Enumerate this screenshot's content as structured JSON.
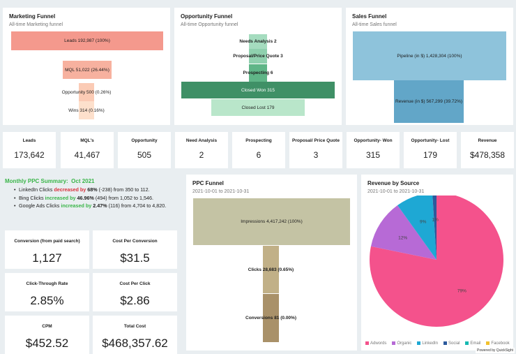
{
  "marketing_funnel": {
    "title": "Marketing Funnel",
    "subtitle": "All-time Marketing funnel",
    "stages": [
      {
        "label": "Leads 192,987 (100%)",
        "color": "#f4998d"
      },
      {
        "label": "MQL 51,022 (26.44%)",
        "color": "#f7b19f"
      },
      {
        "label": "Opportunity 500 (0.26%)",
        "color": "#fbcbb5"
      },
      {
        "label": "Wins 314 (0.16%)",
        "color": "#fde0cc"
      }
    ]
  },
  "opportunity_funnel": {
    "title": "Opportunity Funnel",
    "subtitle": "All-time Opportunity funnel",
    "stages": [
      {
        "label": "Needs Analysis 2",
        "color": "#a5dcbf"
      },
      {
        "label": "Proposal/Price Quote 3",
        "color": "#8fd0ae"
      },
      {
        "label": "Prospecting 6",
        "color": "#5fb587"
      },
      {
        "label": "Closed Won 315",
        "color": "#3f9066"
      },
      {
        "label": "Closed Lost 179",
        "color": "#b9e6ca"
      }
    ]
  },
  "sales_funnel": {
    "title": "Sales Funnel",
    "subtitle": "All-time Sales funnel",
    "stages": [
      {
        "label": "Pipeline (in $) 1,428,304 (100%)",
        "color": "#8ec3db"
      },
      {
        "label": "Revenue (in $) 567,299 (39.72%)",
        "color": "#62a6c8"
      }
    ]
  },
  "kpis": [
    {
      "label": "Leads",
      "value": "173,642"
    },
    {
      "label": "MQL's",
      "value": "41,467"
    },
    {
      "label": "Opportunity",
      "value": "505"
    },
    {
      "label": "Need Analysis",
      "value": "2"
    },
    {
      "label": "Prospecting",
      "value": "6"
    },
    {
      "label": "Proposal/ Price Quote",
      "value": "3"
    },
    {
      "label": "Opportunity- Won",
      "value": "315"
    },
    {
      "label": "Opportunity- Lost",
      "value": "179"
    },
    {
      "label": "Revenue",
      "value": "$478,358"
    }
  ],
  "ppc_summary": {
    "title": "Monthly PPC Summary:",
    "month": "Oct 2021",
    "items": [
      {
        "pre": "LinkedIn Clicks ",
        "change_word": "decreased by",
        "pct": "68%",
        "rest": " (-238) from 350 to 112."
      },
      {
        "pre": "Bing Clicks ",
        "change_word": "increased by",
        "pct": "46.96%",
        "rest": " (494) from 1,052 to 1,546."
      },
      {
        "pre": "Google Ads Clicks ",
        "change_word": "increased by",
        "pct": "2.47%",
        "rest": " (116) from 4,704 to 4,820."
      }
    ]
  },
  "metrics": [
    {
      "label": "Conversion (from paid search)",
      "value": "1,127"
    },
    {
      "label": "Cost Per Conversion",
      "value": "$31.5"
    },
    {
      "label": "Click-Through Rate",
      "value": "2.85%"
    },
    {
      "label": "Cost Per Click",
      "value": "$2.86"
    },
    {
      "label": "CPM",
      "value": "$452.52"
    },
    {
      "label": "Total Cost",
      "value": "$468,357.62"
    }
  ],
  "ppc_funnel": {
    "title": "PPC Funnel",
    "subtitle": "2021-10-01 to 2021-10-31",
    "stages": [
      {
        "label": "Impressions 4,417,242 (100%)",
        "color": "#c4c3a4"
      },
      {
        "label": "Clicks 28,683 (0.65%)",
        "color": "#c1b087"
      },
      {
        "label": "Conversions 81 (0.00%)",
        "color": "#a99169"
      }
    ]
  },
  "revenue_by_source": {
    "title": "Revenue by Source",
    "subtitle": "2021-10-01 to 2021-10-31"
  },
  "chart_data": {
    "type": "pie",
    "title": "Revenue by Source",
    "labels": [
      "Adwords",
      "Organic",
      "LinkedIn",
      "Social",
      "Email",
      "Facebook"
    ],
    "values": [
      79,
      12,
      9,
      1,
      0,
      0
    ],
    "value_labels": [
      "79%",
      "12%",
      "9%",
      "1%",
      "",
      ""
    ],
    "colors": [
      "#f4528c",
      "#b76ad6",
      "#1ea8d4",
      "#2c5a9c",
      "#16b9b2",
      "#f2c12e"
    ],
    "legend_position": "bottom"
  },
  "footer": {
    "powered_by": "Powered by QuickSight"
  }
}
